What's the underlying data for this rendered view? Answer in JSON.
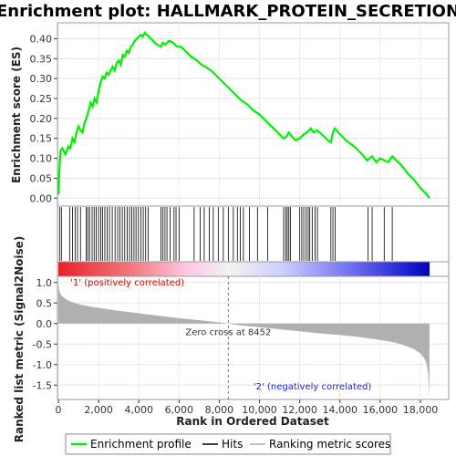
{
  "chart_data": [
    {
      "type": "line",
      "title": "Enrichment plot: HALLMARK_PROTEIN_SECRETION",
      "ylabel": "Enrichment score (ES)",
      "xlim": [
        0,
        18500
      ],
      "ylim": [
        -0.02,
        0.44
      ],
      "yticks": [
        "0.00",
        "0.05",
        "0.10",
        "0.15",
        "0.20",
        "0.25",
        "0.30",
        "0.35",
        "0.40"
      ],
      "ytick_values": [
        0,
        0.05,
        0.1,
        0.15,
        0.2,
        0.25,
        0.3,
        0.35,
        0.4
      ],
      "grid": true,
      "series": [
        {
          "name": "Enrichment profile",
          "color": "#00ee00",
          "x": [
            0,
            30,
            60,
            110,
            200,
            350,
            500,
            600,
            700,
            800,
            900,
            1000,
            1100,
            1200,
            1300,
            1400,
            1500,
            1600,
            1700,
            1800,
            1900,
            2000,
            2100,
            2200,
            2300,
            2400,
            2500,
            2600,
            2700,
            2800,
            2900,
            3000,
            3100,
            3200,
            3300,
            3400,
            3500,
            3600,
            3700,
            3800,
            3900,
            4000,
            4100,
            4200,
            4300,
            4400,
            4500,
            4700,
            4900,
            5100,
            5200,
            5300,
            5400,
            5500,
            5700,
            5900,
            6100,
            6300,
            6600,
            6900,
            7100,
            7300,
            7600,
            7900,
            8200,
            8500,
            8800,
            9100,
            9400,
            9700,
            10000,
            10300,
            10600,
            10900,
            11200,
            11350,
            11450,
            11600,
            11800,
            12000,
            12200,
            12350,
            12450,
            12550,
            12700,
            12850,
            13000,
            13200,
            13400,
            13550,
            13650,
            13750,
            14000,
            14300,
            14700,
            15100,
            15350,
            15600,
            15800,
            16000,
            16200,
            16400,
            16600,
            16800,
            17100,
            17400,
            17700,
            18000,
            18300,
            18450
          ],
          "y": [
            0.01,
            0.05,
            0.08,
            0.12,
            0.125,
            0.11,
            0.13,
            0.125,
            0.15,
            0.14,
            0.165,
            0.18,
            0.17,
            0.165,
            0.19,
            0.2,
            0.22,
            0.24,
            0.23,
            0.25,
            0.24,
            0.27,
            0.29,
            0.305,
            0.3,
            0.315,
            0.31,
            0.32,
            0.33,
            0.32,
            0.34,
            0.345,
            0.335,
            0.36,
            0.355,
            0.37,
            0.365,
            0.38,
            0.385,
            0.395,
            0.4,
            0.405,
            0.41,
            0.405,
            0.415,
            0.41,
            0.405,
            0.395,
            0.385,
            0.38,
            0.39,
            0.385,
            0.39,
            0.395,
            0.39,
            0.38,
            0.38,
            0.37,
            0.355,
            0.345,
            0.335,
            0.33,
            0.32,
            0.305,
            0.29,
            0.275,
            0.26,
            0.245,
            0.235,
            0.22,
            0.21,
            0.195,
            0.18,
            0.165,
            0.15,
            0.155,
            0.165,
            0.155,
            0.145,
            0.15,
            0.16,
            0.165,
            0.17,
            0.175,
            0.165,
            0.17,
            0.165,
            0.155,
            0.145,
            0.14,
            0.165,
            0.175,
            0.16,
            0.145,
            0.13,
            0.11,
            0.095,
            0.105,
            0.09,
            0.1,
            0.095,
            0.09,
            0.105,
            0.095,
            0.08,
            0.06,
            0.045,
            0.025,
            0.01,
            0.0
          ]
        }
      ]
    },
    {
      "type": "bar",
      "name": "Hits",
      "hit_ranks": [
        60,
        150,
        560,
        700,
        830,
        950,
        1100,
        1380,
        1460,
        1550,
        1680,
        1780,
        1880,
        2000,
        2110,
        2200,
        2310,
        2420,
        2540,
        2680,
        2820,
        2950,
        3060,
        3180,
        3300,
        3420,
        3540,
        3650,
        3760,
        3860,
        3980,
        4100,
        4220,
        4340,
        4460,
        5100,
        5200,
        5300,
        5400,
        5560,
        5750,
        5850,
        6000,
        6750,
        7050,
        7250,
        7500,
        7700,
        7950,
        8200,
        8450,
        8700,
        8900,
        9050,
        9200,
        9500,
        9900,
        10400,
        11200,
        11300,
        11380,
        11460,
        11540,
        12000,
        12100,
        12200,
        12320,
        12420,
        12500,
        12620,
        12760,
        12880,
        13550,
        13650,
        13760,
        15400,
        15600,
        16200,
        16600
      ]
    },
    {
      "type": "area",
      "ylabel": "Ranked list metric (Signal2Noise)",
      "xlabel": "Rank in Ordered Dataset",
      "xlim": [
        0,
        18500
      ],
      "ylim": [
        -1.85,
        1.15
      ],
      "xticks": [
        "0",
        "2,000",
        "4,000",
        "6,000",
        "8,000",
        "10,000",
        "12,000",
        "14,000",
        "16,000",
        "18,000"
      ],
      "xtick_values": [
        0,
        2000,
        4000,
        6000,
        8000,
        10000,
        12000,
        14000,
        16000,
        18000
      ],
      "yticks": [
        "1.0",
        "0.5",
        "0.0",
        "-0.5",
        "-1.0",
        "-1.5"
      ],
      "ytick_values": [
        1.0,
        0.5,
        0.0,
        -0.5,
        -1.0,
        -1.5
      ],
      "zero_cross": 8452,
      "zero_cross_label": "Zero cross at 8452",
      "pos_label": "'1' (positively correlated)",
      "neg_label": "'2' (negatively correlated)",
      "series": [
        {
          "name": "Ranking metric scores",
          "color": "#b0b0b0",
          "x": [
            0,
            30,
            80,
            150,
            300,
            500,
            800,
            1200,
            1600,
            2000,
            3000,
            4000,
            5000,
            6000,
            7000,
            8000,
            8452,
            9000,
            10000,
            11000,
            12000,
            13000,
            14000,
            15000,
            16000,
            16800,
            17300,
            17700,
            18000,
            18200,
            18320,
            18380,
            18420,
            18450
          ],
          "y": [
            1.05,
            0.85,
            0.75,
            0.68,
            0.62,
            0.56,
            0.5,
            0.45,
            0.41,
            0.38,
            0.31,
            0.25,
            0.19,
            0.13,
            0.08,
            0.03,
            0.0,
            -0.04,
            -0.09,
            -0.14,
            -0.19,
            -0.24,
            -0.28,
            -0.33,
            -0.4,
            -0.47,
            -0.55,
            -0.63,
            -0.73,
            -0.85,
            -1.0,
            -1.2,
            -1.5,
            -1.78
          ]
        }
      ]
    }
  ],
  "legend": {
    "items": [
      {
        "label": "Enrichment profile",
        "color": "#00ee00"
      },
      {
        "label": "Hits",
        "color": "#000000"
      },
      {
        "label": "Ranking metric scores",
        "color": "#c0c0c0"
      }
    ]
  }
}
